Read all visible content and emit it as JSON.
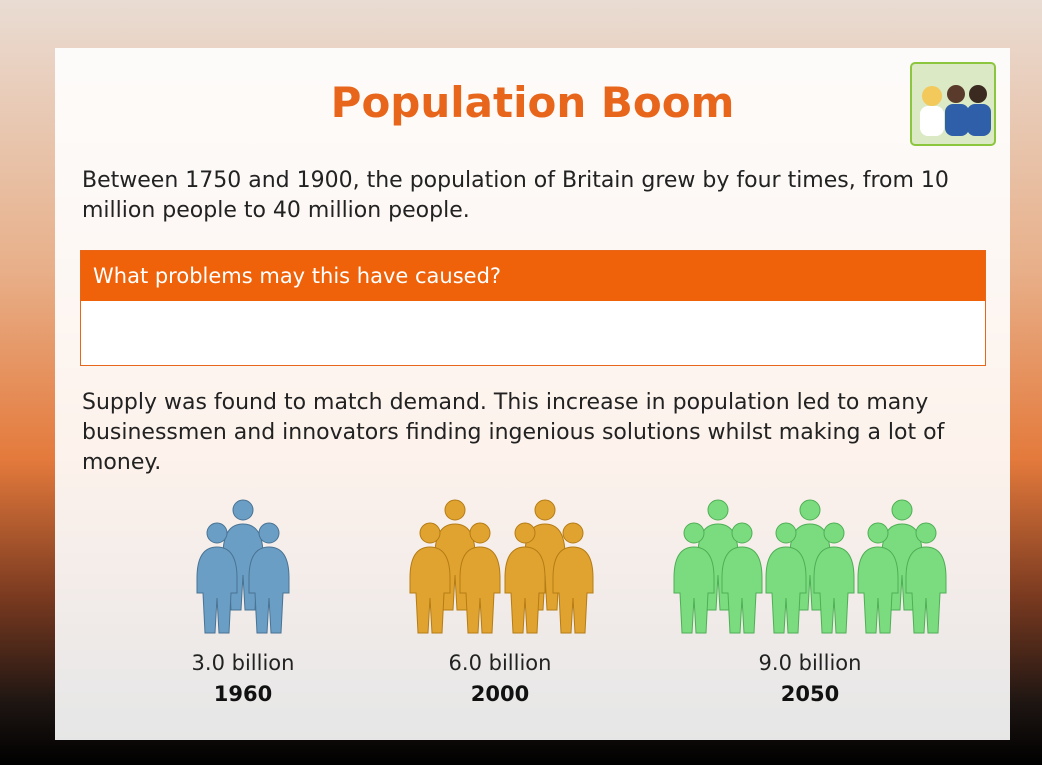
{
  "header": {
    "title": "Population Boom"
  },
  "intro": "Between 1750 and 1900, the population of Britain grew by four times, from 10 million people to 40 million people.",
  "question": {
    "heading": "What problems may this have caused?"
  },
  "body": "Supply was found to match demand. This increase in population led to many businessmen and innovators finding ingenious solutions whilst making a lot of money.",
  "groups": [
    {
      "amount": "3.0 billion",
      "year": "1960"
    },
    {
      "amount": "6.0 billion",
      "year": "2000"
    },
    {
      "amount": "9.0 billion",
      "year": "2050"
    }
  ]
}
